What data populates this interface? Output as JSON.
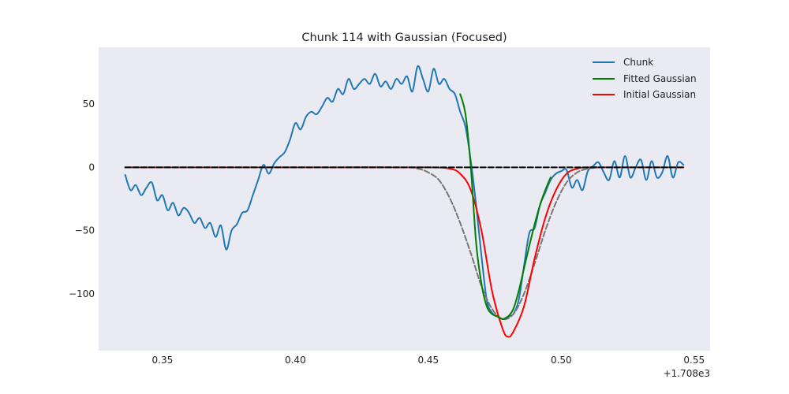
{
  "chart_data": {
    "type": "line",
    "title": "Chunk 114 with Gaussian (Focused)",
    "xlabel": "",
    "ylabel": "",
    "x_offset_label": "+1.708e3",
    "xlim": [
      0.326,
      0.556
    ],
    "ylim": [
      -145,
      95
    ],
    "x_ticks": [
      0.35,
      0.4,
      0.45,
      0.5,
      0.55
    ],
    "x_tick_labels": [
      "0.35",
      "0.40",
      "0.45",
      "0.50",
      "0.55"
    ],
    "y_ticks": [
      50,
      0,
      -50,
      -100
    ],
    "y_tick_labels": [
      "50",
      "0",
      "−50",
      "−100"
    ],
    "grid": false,
    "background": "#eaeaf2",
    "legend_position": "top-right",
    "series": [
      {
        "name": "Chunk",
        "color": "#1f77b4",
        "style": "solid",
        "x": [
          0.336,
          0.338,
          0.34,
          0.342,
          0.344,
          0.346,
          0.348,
          0.35,
          0.352,
          0.354,
          0.356,
          0.358,
          0.36,
          0.362,
          0.364,
          0.366,
          0.368,
          0.37,
          0.372,
          0.374,
          0.376,
          0.378,
          0.38,
          0.382,
          0.384,
          0.386,
          0.388,
          0.39,
          0.392,
          0.394,
          0.396,
          0.398,
          0.4,
          0.402,
          0.404,
          0.406,
          0.408,
          0.41,
          0.412,
          0.414,
          0.416,
          0.418,
          0.42,
          0.422,
          0.424,
          0.426,
          0.428,
          0.43,
          0.432,
          0.434,
          0.436,
          0.438,
          0.44,
          0.442,
          0.444,
          0.446,
          0.448,
          0.45,
          0.452,
          0.454,
          0.456,
          0.458,
          0.46,
          0.462,
          0.464,
          0.466,
          0.468,
          0.47,
          0.472,
          0.474,
          0.476,
          0.478,
          0.48,
          0.482,
          0.484,
          0.486,
          0.488,
          0.49,
          0.492,
          0.494,
          0.496,
          0.498,
          0.5,
          0.502,
          0.504,
          0.506,
          0.508,
          0.51,
          0.512,
          0.514,
          0.516,
          0.518,
          0.52,
          0.522,
          0.524,
          0.526,
          0.528,
          0.53,
          0.532,
          0.534,
          0.536,
          0.538,
          0.54,
          0.542,
          0.544,
          0.546
        ],
        "y": [
          -6,
          -18,
          -14,
          -22,
          -16,
          -12,
          -26,
          -22,
          -34,
          -28,
          -38,
          -32,
          -36,
          -44,
          -40,
          -48,
          -44,
          -55,
          -46,
          -65,
          -50,
          -45,
          -36,
          -34,
          -22,
          -10,
          2,
          -5,
          3,
          8,
          12,
          22,
          35,
          30,
          40,
          44,
          42,
          48,
          55,
          52,
          62,
          58,
          70,
          62,
          66,
          70,
          66,
          74,
          64,
          68,
          62,
          70,
          66,
          72,
          60,
          80,
          70,
          60,
          78,
          66,
          70,
          62,
          58,
          44,
          32,
          5,
          -30,
          -70,
          -105,
          -115,
          -118,
          -120,
          -118,
          -116,
          -105,
          -78,
          -52,
          -48,
          -30,
          -20,
          -10,
          -5,
          -3,
          -2,
          -16,
          -10,
          -18,
          -3,
          1,
          4,
          -4,
          -10,
          5,
          -8,
          9,
          -8,
          0,
          6,
          -10,
          5,
          -8,
          -4,
          9,
          -8,
          4,
          2
        ]
      },
      {
        "name": "Fitted Gaussian",
        "color": "#008000",
        "style": "solid",
        "x": [
          0.462,
          0.464,
          0.466,
          0.468,
          0.47,
          0.472,
          0.474,
          0.476,
          0.478,
          0.48,
          0.482,
          0.484,
          0.486,
          0.488,
          0.49,
          0.492,
          0.494,
          0.496
        ],
        "y": [
          58,
          42,
          0,
          -60,
          -92,
          -110,
          -116,
          -118,
          -120,
          -118,
          -112,
          -98,
          -80,
          -62,
          -45,
          -30,
          -18,
          -8
        ]
      },
      {
        "name": "Initial Gaussian",
        "color": "#ff0000",
        "style": "solid",
        "x": [
          0.336,
          0.35,
          0.38,
          0.42,
          0.45,
          0.458,
          0.462,
          0.466,
          0.47,
          0.474,
          0.478,
          0.48,
          0.482,
          0.486,
          0.49,
          0.494,
          0.498,
          0.502,
          0.506,
          0.51,
          0.52,
          0.546
        ],
        "y": [
          0,
          0,
          0,
          0,
          0,
          -1,
          -5,
          -18,
          -50,
          -98,
          -128,
          -134,
          -130,
          -110,
          -72,
          -40,
          -18,
          -5,
          -1,
          0,
          0,
          0
        ]
      },
      {
        "name": "",
        "color": "#777777",
        "style": "dashed",
        "x": [
          0.336,
          0.4,
          0.44,
          0.446,
          0.45,
          0.454,
          0.458,
          0.462,
          0.466,
          0.47,
          0.474,
          0.478,
          0.482,
          0.486,
          0.49,
          0.494,
          0.498,
          0.502,
          0.506,
          0.51,
          0.514
        ],
        "y": [
          0,
          0,
          0,
          -1,
          -4,
          -10,
          -24,
          -44,
          -68,
          -94,
          -112,
          -120,
          -116,
          -100,
          -76,
          -50,
          -28,
          -12,
          -4,
          -1,
          0
        ]
      },
      {
        "name": "",
        "color": "#000000",
        "style": "dashed",
        "x": [
          0.336,
          0.546
        ],
        "y": [
          0,
          0
        ]
      }
    ]
  }
}
